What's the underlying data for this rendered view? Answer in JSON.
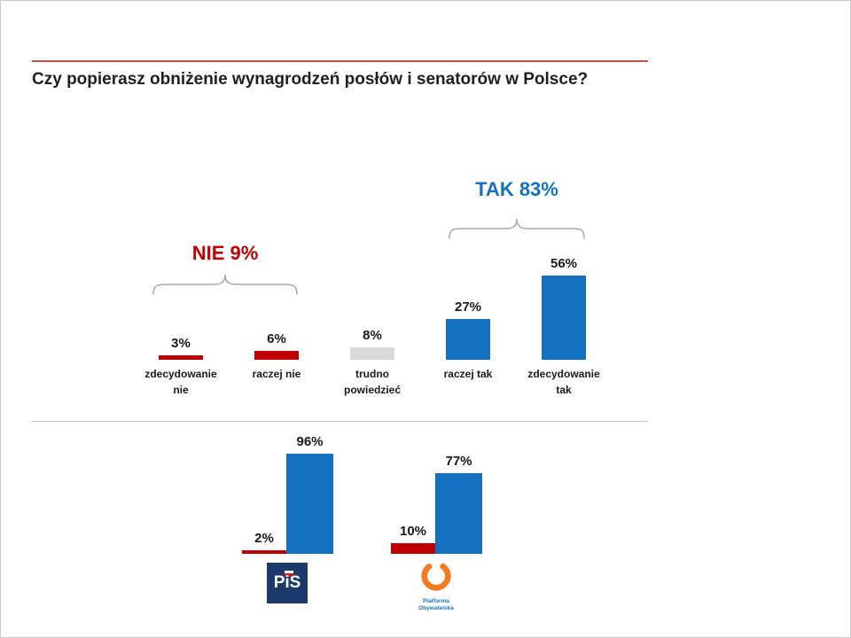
{
  "header": {
    "title": "Czy popierasz obniżenie wynagrodzeń posłów i senatorów w Polsce?",
    "rule_color": "#C0504D",
    "title_color": "#1F1F1F"
  },
  "colors": {
    "red": "#C00000",
    "blue": "#1470C0",
    "gray": "#D9D9D9",
    "bracket": "#A6A6A6",
    "divider": "#BFBFBF",
    "pis_navy": "#1B3A6B",
    "po_orange": "#F47B20",
    "po_blue": "#1B75BB"
  },
  "main_chart": {
    "value_labels": [
      "3%",
      "6%",
      "8%",
      "27%",
      "56%"
    ],
    "categories": [
      "zdecydowanie nie",
      "raczej nie",
      "trudno powiedzieć",
      "raczej tak",
      "zdecydowanie tak"
    ],
    "nie_label": "NIE 9%",
    "tak_label": "TAK 83%"
  },
  "party_chart": {
    "pis": {
      "nie_label": "2%",
      "tak_label": "96%",
      "logo_text": "PiS"
    },
    "po": {
      "nie_label": "10%",
      "tak_label": "77%",
      "logo_text": "Platforma Obywatelska"
    }
  },
  "chart_data": [
    {
      "type": "bar",
      "title": "Czy popierasz obniżenie wynagrodzeń posłów i senatorów w Polsce?",
      "categories": [
        "zdecydowanie nie",
        "raczej nie",
        "trudno powiedzieć",
        "raczej tak",
        "zdecydowanie tak"
      ],
      "values": [
        3,
        6,
        8,
        27,
        56
      ],
      "bar_colors": [
        "#C00000",
        "#C00000",
        "#D9D9D9",
        "#1470C0",
        "#1470C0"
      ],
      "value_suffix": "%",
      "ylim": [
        0,
        60
      ],
      "grid": false,
      "annotations": [
        {
          "text": "NIE 9%",
          "total": 9,
          "color": "#C00000",
          "spans": [
            "zdecydowanie nie",
            "raczej nie"
          ]
        },
        {
          "text": "TAK 83%",
          "total": 83,
          "color": "#1470C0",
          "spans": [
            "raczej tak",
            "zdecydowanie tak"
          ]
        }
      ]
    },
    {
      "type": "bar",
      "categories": [
        "PiS",
        "Platforma Obywatelska"
      ],
      "series": [
        {
          "name": "nie",
          "color": "#C00000",
          "values": [
            2,
            10
          ]
        },
        {
          "name": "tak",
          "color": "#1470C0",
          "values": [
            96,
            77
          ]
        }
      ],
      "value_suffix": "%",
      "ylim": [
        0,
        100
      ],
      "grid": false
    }
  ]
}
